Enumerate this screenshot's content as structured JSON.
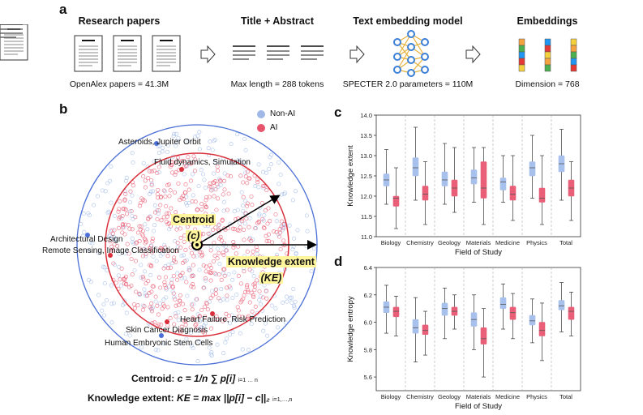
{
  "panel_a": {
    "letter": "a",
    "steps": [
      {
        "title": "Research papers",
        "caption": "OpenAlex papers = 41.3M",
        "icon": "paper-icon"
      },
      {
        "title": "Title + Abstract",
        "caption": "Max length = 288 tokens",
        "icon": "text-lines-icon"
      },
      {
        "title": "Text embedding model",
        "caption": "SPECTER 2.0 parameters = 110M",
        "icon": "neural-network-icon"
      },
      {
        "title": "Embeddings",
        "caption": "Dimension = 768",
        "icon": "embedding-vector-icon"
      }
    ],
    "embedding_colors": [
      "#f4a340",
      "#4caf50",
      "#2196f3",
      "#e53935",
      "#f4d03f"
    ]
  },
  "panel_b": {
    "letter": "b",
    "legend": [
      {
        "label": "Non-AI",
        "color": "#9fb8e8"
      },
      {
        "label": "AI",
        "color": "#e8546c"
      }
    ],
    "topics": [
      "Asteroids, Jupiter Orbit",
      "Fluid dynamics, Simulation",
      "Architectural Design",
      "Remote Sensing, Image Classification",
      "Heart Failure, Risk Prediction",
      "Skin Cancer Diagnosis",
      "Human Embryonic Stem Cells"
    ],
    "centroid_label": "Centroid",
    "centroid_symbol": "(c)",
    "ke_label": "Knowledge extent",
    "ke_symbol": "(KE)",
    "formula_centroid_name": "Centroid:",
    "formula_centroid": "c = 1/n ∑ p[i]",
    "formula_ke_name": "Knowledge extent:",
    "formula_ke": "KE = max ||p[i] − c||₂",
    "formula_sum_limits": "i=1 … n",
    "formula_max_limits": "i=1,…,n"
  },
  "chart_data": [
    {
      "type": "box",
      "panel": "c",
      "title": "",
      "xlabel": "Field of Study",
      "ylabel": "Knowledge extent",
      "ylim": [
        11.0,
        14.0
      ],
      "yticks": [
        "11.0",
        "11.5",
        "12.0",
        "12.5",
        "13.0",
        "13.5",
        "14.0"
      ],
      "categories": [
        "Biology",
        "Chemistry",
        "Geology",
        "Materials",
        "Medicine",
        "Physics",
        "Total"
      ],
      "series": [
        {
          "name": "Non-AI",
          "color": "#a8c0ec",
          "boxes": [
            {
              "whislo": 11.8,
              "q1": 12.25,
              "med": 12.4,
              "q3": 12.55,
              "whishi": 13.15
            },
            {
              "whislo": 11.9,
              "q1": 12.5,
              "med": 12.7,
              "q3": 12.95,
              "whishi": 13.7
            },
            {
              "whislo": 11.8,
              "q1": 12.25,
              "med": 12.4,
              "q3": 12.6,
              "whishi": 13.3
            },
            {
              "whislo": 11.85,
              "q1": 12.3,
              "med": 12.45,
              "q3": 12.65,
              "whishi": 13.2
            },
            {
              "whislo": 11.85,
              "q1": 12.15,
              "med": 12.35,
              "q3": 12.45,
              "whishi": 13.0
            },
            {
              "whislo": 11.95,
              "q1": 12.5,
              "med": 12.7,
              "q3": 12.85,
              "whishi": 13.5
            },
            {
              "whislo": 11.9,
              "q1": 12.6,
              "med": 12.8,
              "q3": 13.0,
              "whishi": 13.65
            }
          ]
        },
        {
          "name": "AI",
          "color": "#ea5f78",
          "boxes": [
            {
              "whislo": 11.2,
              "q1": 11.75,
              "med": 11.95,
              "q3": 12.0,
              "whishi": 12.7
            },
            {
              "whislo": 11.3,
              "q1": 11.9,
              "med": 12.05,
              "q3": 12.25,
              "whishi": 12.85
            },
            {
              "whislo": 11.6,
              "q1": 12.0,
              "med": 12.2,
              "q3": 12.4,
              "whishi": 13.2
            },
            {
              "whislo": 11.3,
              "q1": 11.95,
              "med": 12.2,
              "q3": 12.85,
              "whishi": 13.2
            },
            {
              "whislo": 11.4,
              "q1": 11.9,
              "med": 12.05,
              "q3": 12.25,
              "whishi": 13.0
            },
            {
              "whislo": 11.3,
              "q1": 11.85,
              "med": 11.95,
              "q3": 12.2,
              "whishi": 13.0
            },
            {
              "whislo": 11.4,
              "q1": 12.0,
              "med": 12.2,
              "q3": 12.4,
              "whishi": 12.85
            }
          ]
        }
      ]
    },
    {
      "type": "box",
      "panel": "d",
      "title": "",
      "xlabel": "Field of Study",
      "ylabel": "Knowledge entropy",
      "ylim": [
        5.5,
        6.4
      ],
      "yticks": [
        "5.6",
        "5.8",
        "6.0",
        "6.2",
        "6.4"
      ],
      "categories": [
        "Biology",
        "Chemistry",
        "Geology",
        "Materials",
        "Medicine",
        "Physics",
        "Total"
      ],
      "series": [
        {
          "name": "Non-AI",
          "color": "#a8c0ec",
          "boxes": [
            {
              "whislo": 5.92,
              "q1": 6.07,
              "med": 6.11,
              "q3": 6.15,
              "whishi": 6.27
            },
            {
              "whislo": 5.71,
              "q1": 5.92,
              "med": 5.96,
              "q3": 6.02,
              "whishi": 6.18
            },
            {
              "whislo": 5.88,
              "q1": 6.05,
              "med": 6.1,
              "q3": 6.14,
              "whishi": 6.25
            },
            {
              "whislo": 5.8,
              "q1": 5.97,
              "med": 6.02,
              "q3": 6.07,
              "whishi": 6.2
            },
            {
              "whislo": 5.95,
              "q1": 6.1,
              "med": 6.13,
              "q3": 6.18,
              "whishi": 6.28
            },
            {
              "whislo": 5.85,
              "q1": 5.98,
              "med": 6.01,
              "q3": 6.05,
              "whishi": 6.17
            },
            {
              "whislo": 5.93,
              "q1": 6.09,
              "med": 6.12,
              "q3": 6.16,
              "whishi": 6.29
            }
          ]
        },
        {
          "name": "AI",
          "color": "#ea5f78",
          "boxes": [
            {
              "whislo": 5.9,
              "q1": 6.04,
              "med": 6.08,
              "q3": 6.11,
              "whishi": 6.19
            },
            {
              "whislo": 5.76,
              "q1": 5.91,
              "med": 5.94,
              "q3": 5.98,
              "whishi": 6.08
            },
            {
              "whislo": 5.95,
              "q1": 6.05,
              "med": 6.08,
              "q3": 6.11,
              "whishi": 6.2
            },
            {
              "whislo": 5.6,
              "q1": 5.84,
              "med": 5.88,
              "q3": 5.96,
              "whishi": 6.1
            },
            {
              "whislo": 5.88,
              "q1": 6.02,
              "med": 6.07,
              "q3": 6.11,
              "whishi": 6.21
            },
            {
              "whislo": 5.72,
              "q1": 5.9,
              "med": 5.94,
              "q3": 6.0,
              "whishi": 6.14
            },
            {
              "whislo": 5.9,
              "q1": 6.02,
              "med": 6.08,
              "q3": 6.11,
              "whishi": 6.22
            }
          ]
        }
      ]
    }
  ]
}
